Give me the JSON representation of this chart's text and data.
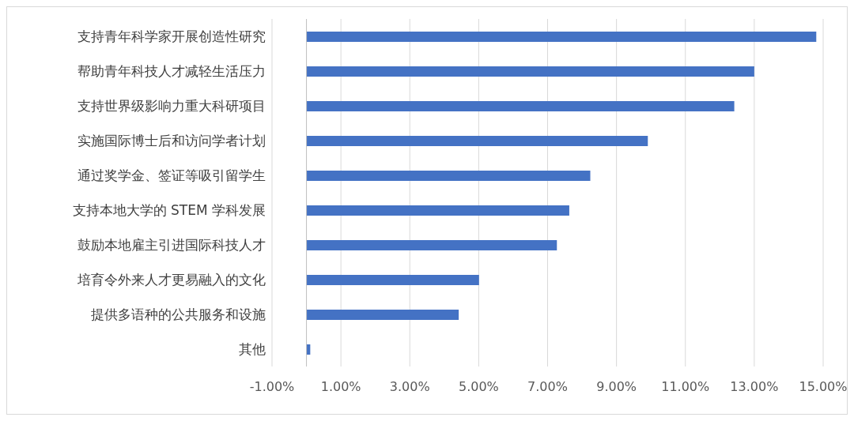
{
  "chart_data": {
    "type": "bar",
    "orientation": "horizontal",
    "categories": [
      "支持青年科学家开展创造性研究",
      "帮助青年科技人才减轻生活压力",
      "支持世界级影响力重大科研项目",
      "实施国际博士后和访问学者计划",
      "通过奖学金、签证等吸引留学生",
      "支持本地大学的 STEM 学科发展",
      "鼓励本地雇主引进国际科技人才",
      "培育令外来人才更易融入的文化",
      "提供多语种的公共服务和设施",
      "其他"
    ],
    "values": [
      14.8,
      13.0,
      12.42,
      9.91,
      8.24,
      7.63,
      7.27,
      5.01,
      4.42,
      0.11
    ],
    "color": "#4472c4",
    "xlim": [
      -1,
      15
    ],
    "xticks": [
      {
        "value": -1,
        "label": "-1.00%"
      },
      {
        "value": 1,
        "label": "1.00%"
      },
      {
        "value": 3,
        "label": "3.00%"
      },
      {
        "value": 5,
        "label": "5.00%"
      },
      {
        "value": 7,
        "label": "7.00%"
      },
      {
        "value": 9,
        "label": "9.00%"
      },
      {
        "value": 11,
        "label": "11.00%"
      },
      {
        "value": 13,
        "label": "13.00%"
      },
      {
        "value": 15,
        "label": "15.00%"
      }
    ],
    "grid": "x",
    "legend": false
  }
}
